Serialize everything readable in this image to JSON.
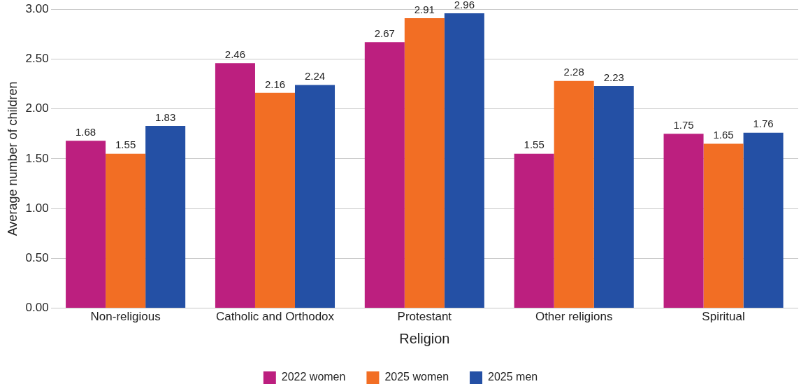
{
  "chart_data": {
    "type": "bar",
    "xlabel": "Religion",
    "ylabel": "Average number of children",
    "categories": [
      "Non-religious",
      "Catholic and Orthodox",
      "Protestant",
      "Other religions",
      "Spiritual"
    ],
    "series": [
      {
        "name": "2022 women",
        "color": "#bc1f7f",
        "values": [
          1.68,
          2.46,
          2.67,
          1.55,
          1.75
        ]
      },
      {
        "name": "2025 women",
        "color": "#f26e24",
        "values": [
          1.55,
          2.16,
          2.91,
          2.28,
          1.65
        ]
      },
      {
        "name": "2025 men",
        "color": "#2450a5",
        "values": [
          1.83,
          2.24,
          2.96,
          2.23,
          1.76
        ]
      }
    ],
    "ylim": [
      0,
      3
    ],
    "yticks": [
      {
        "value": 0,
        "label": "0.00"
      },
      {
        "value": 0.5,
        "label": "0.50"
      },
      {
        "value": 1,
        "label": "1.00"
      },
      {
        "value": 1.5,
        "label": "1.50"
      },
      {
        "value": 2,
        "label": "2.00"
      },
      {
        "value": 2.5,
        "label": "2.50"
      },
      {
        "value": 3,
        "label": "3.00"
      }
    ],
    "grid": "y",
    "legend": "bottom",
    "data_labels": true
  }
}
